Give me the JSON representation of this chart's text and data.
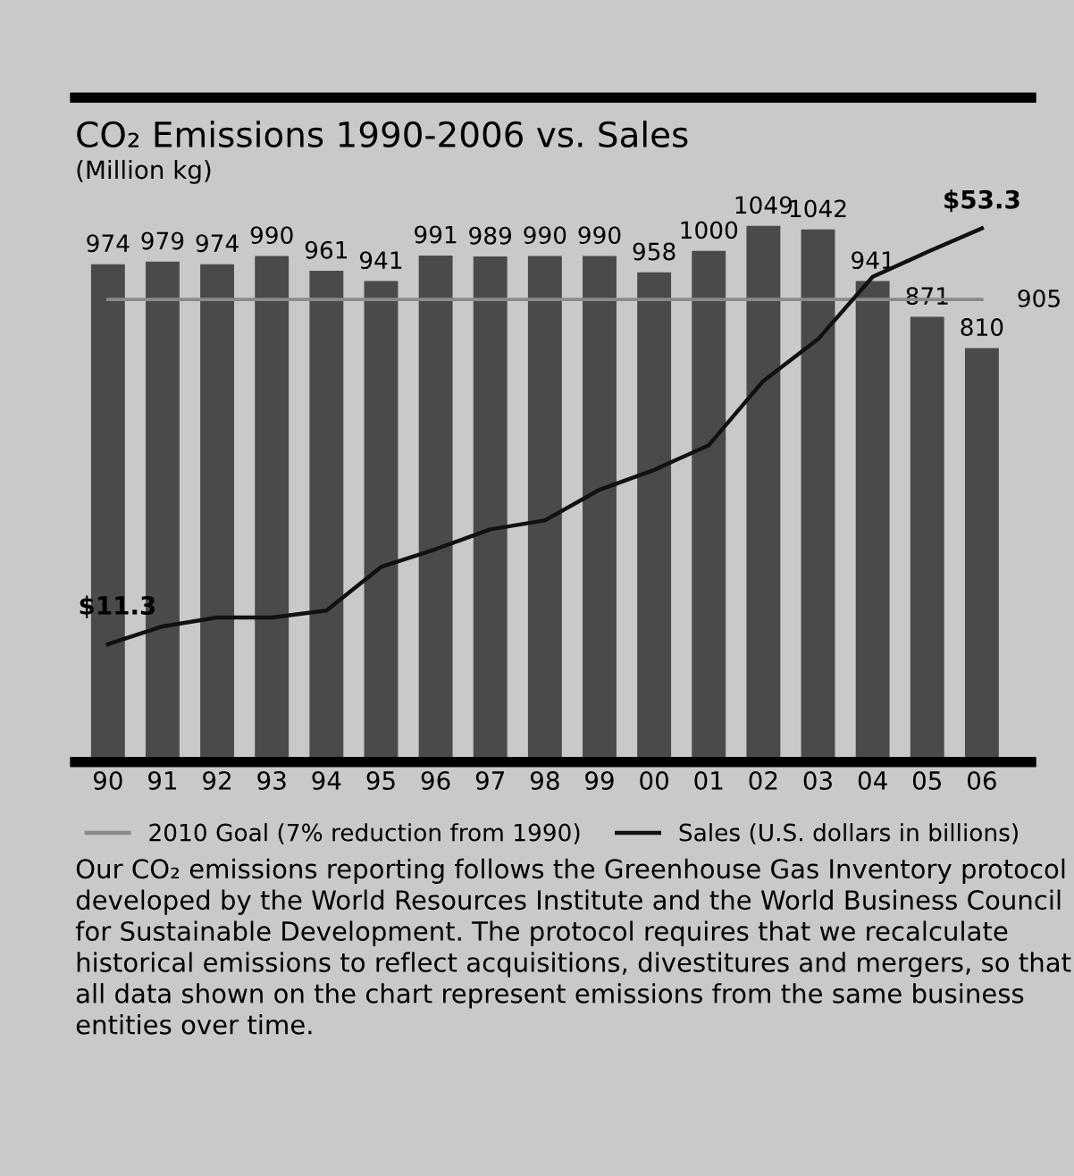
{
  "chart_data": {
    "type": "bar",
    "title": "CO₂ Emissions 1990-2006 vs. Sales",
    "subtitle": "(Million kg)",
    "categories": [
      "90",
      "91",
      "92",
      "93",
      "94",
      "95",
      "96",
      "97",
      "98",
      "99",
      "00",
      "01",
      "02",
      "03",
      "04",
      "05",
      "06"
    ],
    "series": [
      {
        "color": "#4a4a4a",
        "values": [
          974,
          979,
          974,
          990,
          961,
          941,
          991,
          989,
          990,
          990,
          958,
          1000,
          1049,
          1042,
          941,
          871,
          810
        ],
        "data_labels": true
      },
      {
        "type": "line",
        "name": "2010 Goal (7% reduction from 1990)",
        "color": "#8a8a8a",
        "values": [
          905,
          905,
          905,
          905,
          905,
          905,
          905,
          905,
          905,
          905,
          905,
          905,
          905,
          905,
          905,
          905,
          905
        ],
        "value_labels": [
          null,
          null,
          null,
          null,
          null,
          null,
          null,
          null,
          null,
          null,
          null,
          null,
          null,
          null,
          null,
          null,
          "905"
        ]
      },
      {
        "type": "line",
        "name": "Sales (U.S. dollars in billions)",
        "color": "#111111",
        "axis": "y2",
        "values": [
          11.3,
          13.1,
          14.0,
          14.0,
          14.7,
          19.1,
          20.9,
          22.9,
          23.8,
          26.9,
          28.9,
          31.4,
          37.9,
          42.1,
          48.4,
          50.9,
          53.3
        ],
        "value_labels": [
          "$11.3",
          null,
          null,
          null,
          null,
          null,
          null,
          null,
          null,
          null,
          null,
          null,
          null,
          null,
          null,
          null,
          "$53.3"
        ]
      }
    ],
    "ylim": [
      0,
      1300
    ],
    "y2lim": [
      -0.6,
      66.5
    ],
    "tick_labels": "x",
    "grid": false,
    "legend": "bottom",
    "line_style": "solid",
    "marker": "none",
    "annotations": [
      "Our CO₂ emissions reporting follows the Greenhouse Gas Inventory protocol developed by the World Resources Institute and the World Business Council for Sustainable Development. The protocol requires that we recalculate historical emissions to reflect acquisitions, divestitures and mergers, so that all data shown on the chart represent emissions from the same business entities over time."
    ]
  }
}
